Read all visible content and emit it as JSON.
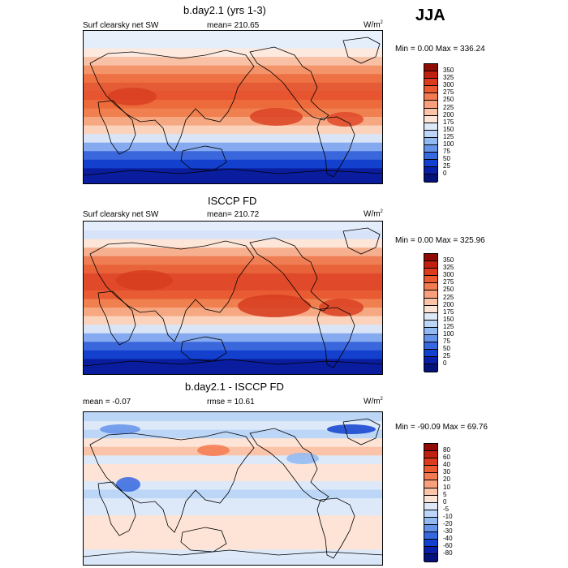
{
  "season": "JJA",
  "panels": [
    {
      "title": "b.day2.1 (yrs 1-3)",
      "left_label": "Surf clearsky net SW",
      "mid_label": "mean= 210.65",
      "units": "W/m",
      "units_sup": "2",
      "minmax": "Min =   0.00 Max = 336.24",
      "colorbar_ticks": [
        "350",
        "325",
        "300",
        "275",
        "250",
        "225",
        "200",
        "175",
        "150",
        "125",
        "100",
        "75",
        "50",
        "25",
        "0"
      ],
      "colorbar_colors": [
        "#8f0c05",
        "#c0200f",
        "#dc3b1c",
        "#ec5a31",
        "#f47b51",
        "#f8a07c",
        "#fbc3a8",
        "#fde4d6",
        "#dde9f9",
        "#bcd6f7",
        "#92b9f2",
        "#6593ea",
        "#3668e0",
        "#1241cf",
        "#0a1fa7",
        "#05127a"
      ],
      "bands": [
        "#0a1d9e",
        "#0a1d9e",
        "#1340cc",
        "#3a67dc",
        "#86aaf0",
        "#d9e5f7",
        "#fbd3bd",
        "#f6a882",
        "#f0804f",
        "#ed6a3b",
        "#e65430",
        "#e45b35",
        "#ee7143",
        "#f3946a",
        "#f8c0a4",
        "#fde9de",
        "#e4eefb",
        "#e8f0fb"
      ],
      "hot_spots": [
        [
          30,
          70,
          60,
          22,
          "#d83f21"
        ],
        [
          205,
          95,
          65,
          22,
          "#db4325"
        ],
        [
          300,
          100,
          45,
          18,
          "#e04a2a"
        ]
      ]
    },
    {
      "title": "ISCCP FD",
      "left_label": "Surf clearsky net SW",
      "mid_label": "mean= 210.72",
      "units": "W/m",
      "units_sup": "2",
      "minmax": "Min =   0.00 Max = 325.96",
      "colorbar_ticks": [
        "350",
        "325",
        "300",
        "275",
        "250",
        "225",
        "200",
        "175",
        "150",
        "125",
        "100",
        "75",
        "50",
        "25",
        "0"
      ],
      "colorbar_colors": [
        "#8f0c05",
        "#c0200f",
        "#dc3b1c",
        "#ec5a31",
        "#f47b51",
        "#f8a07c",
        "#fbc3a8",
        "#fde4d6",
        "#dde9f9",
        "#bcd6f7",
        "#92b9f2",
        "#6593ea",
        "#3668e0",
        "#1241cf",
        "#0a1fa7",
        "#05127a"
      ],
      "bands": [
        "#0a1d9e",
        "#0a1d9e",
        "#1340cc",
        "#3a67dc",
        "#86aaf0",
        "#d9e5f7",
        "#fbd3bd",
        "#f6a882",
        "#f0804f",
        "#e95c33",
        "#e04a2a",
        "#e04a2a",
        "#e8633a",
        "#ef7e55",
        "#f6b090",
        "#fde5d8",
        "#d6e3f8",
        "#e4edfb"
      ],
      "hot_spots": [
        [
          40,
          60,
          70,
          25,
          "#d63c1f"
        ],
        [
          190,
          90,
          90,
          28,
          "#d63c1f"
        ],
        [
          290,
          95,
          55,
          22,
          "#da4123"
        ]
      ]
    },
    {
      "title": "b.day2.1 - ISCCP FD",
      "left_label": "mean =  -0.07",
      "mid_label": "rmse =  10.61",
      "units": "W/m",
      "units_sup": "2",
      "minmax": "Min = -90.09 Max =  69.76",
      "colorbar_ticks": [
        "80",
        "60",
        "40",
        "30",
        "20",
        "10",
        "5",
        "0",
        "-5",
        "-10",
        "-20",
        "-30",
        "-40",
        "-60",
        "-80"
      ],
      "colorbar_colors": [
        "#8f0c05",
        "#c0200f",
        "#dc3b1c",
        "#ec5a31",
        "#f47b51",
        "#f8a07c",
        "#fbc3a8",
        "#fde4d6",
        "#dde9f9",
        "#bcd6f7",
        "#92b9f2",
        "#6593ea",
        "#3668e0",
        "#1241cf",
        "#0a1fa7",
        "#05127a"
      ],
      "bands": [
        "#d9e6f8",
        "#dde9f9",
        "#fde4d6",
        "#fde4d6",
        "#fde4d6",
        "#fde4d6",
        "#dde9f9",
        "#dde9f9",
        "#bcd6f7",
        "#dde9f9",
        "#fde4d6",
        "#fde4d6",
        "#dde9f9",
        "#fbc3a8",
        "#fde4d6",
        "#bcd6f7",
        "#dde9f9",
        "#bcd6f7"
      ],
      "hot_spots": [
        [
          300,
          15,
          60,
          12,
          "#1241cf"
        ],
        [
          20,
          15,
          50,
          12,
          "#6593ea"
        ],
        [
          140,
          40,
          40,
          14,
          "#f47b51"
        ],
        [
          40,
          80,
          30,
          18,
          "#3668e0"
        ],
        [
          250,
          50,
          40,
          14,
          "#92b9f2"
        ]
      ]
    }
  ]
}
